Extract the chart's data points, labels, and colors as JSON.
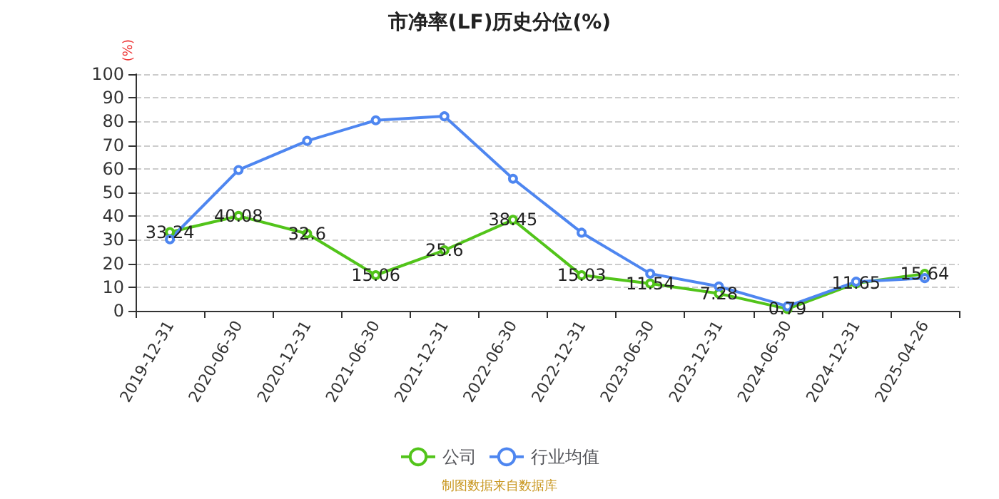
{
  "chart_data": {
    "type": "line",
    "title": "市净率(LF)历史分位(%)",
    "ylabel": "(%)",
    "annotations": [
      "制图数据来自数据库"
    ],
    "categories": [
      "2019-12-31",
      "2020-06-30",
      "2020-12-31",
      "2021-06-30",
      "2021-12-31",
      "2022-06-30",
      "2022-12-31",
      "2023-06-30",
      "2023-12-31",
      "2024-06-30",
      "2024-12-31",
      "2025-04-26"
    ],
    "series": [
      {
        "name": "公司",
        "color": "#52c41a",
        "values": [
          33.24,
          40.08,
          32.6,
          15.06,
          25.6,
          38.45,
          15.03,
          11.54,
          7.28,
          0.79,
          11.65,
          15.64
        ],
        "value_labels": [
          "33.24",
          "40.08",
          "32.6",
          "15.06",
          "25.6",
          "38.45",
          "15.03",
          "11.54",
          "7.28",
          "0.79",
          "11.65",
          "15.64"
        ]
      },
      {
        "name": "行业均值",
        "color": "#4e86f0",
        "values": [
          30.2,
          59.5,
          71.8,
          80.5,
          82.2,
          55.8,
          33,
          15.7,
          10.3,
          1.9,
          12.3,
          13.8
        ]
      }
    ],
    "ylim": [
      0,
      100
    ],
    "yticks": [
      0,
      10,
      20,
      30,
      40,
      50,
      60,
      70,
      80,
      90,
      100
    ],
    "grid": "y",
    "legend": "bottom",
    "marker": "circle",
    "line_style": "solid"
  }
}
